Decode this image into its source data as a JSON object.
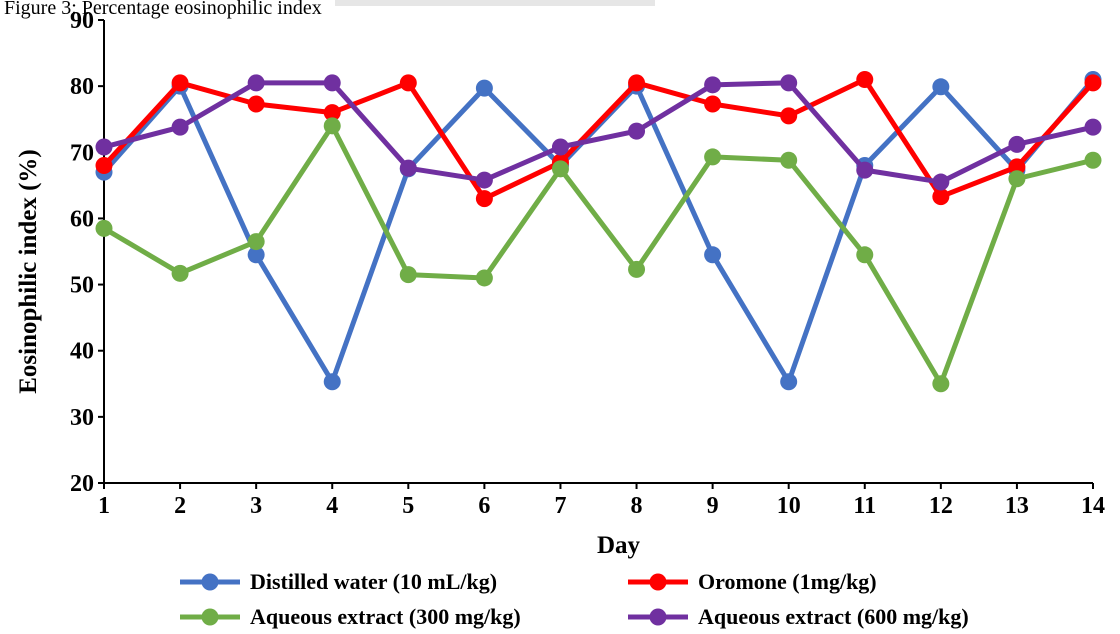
{
  "page": {
    "caption": "Figure 3: Percentage eosinophilic index"
  },
  "chart_data": {
    "type": "line",
    "title": "",
    "xlabel": "Day",
    "ylabel": "Eosinophilic index (%)",
    "x": [
      1,
      2,
      3,
      4,
      5,
      6,
      7,
      8,
      9,
      10,
      11,
      12,
      13,
      14
    ],
    "xlim": [
      1,
      14
    ],
    "ylim": [
      20,
      90
    ],
    "yticks": [
      20,
      30,
      40,
      50,
      60,
      70,
      80,
      90
    ],
    "grid": false,
    "legend_position": "bottom",
    "series": [
      {
        "name": "Distilled water (10 mL/kg)",
        "color": "#4472C4",
        "values": [
          67,
          80,
          54.5,
          35.3,
          67.5,
          79.7,
          68,
          80,
          54.5,
          35.3,
          68,
          79.9,
          67.3,
          81
        ]
      },
      {
        "name": "Oromone (1mg/kg)",
        "color": "#FF0000",
        "values": [
          68,
          80.5,
          77.3,
          76,
          80.5,
          63,
          68.5,
          80.5,
          77.3,
          75.5,
          81,
          63.3,
          67.8,
          80.5
        ]
      },
      {
        "name": "Aqueous extract (300 mg/kg)",
        "color": "#70AD47",
        "values": [
          58.5,
          51.7,
          56.5,
          74,
          51.5,
          51,
          67.5,
          52.3,
          69.3,
          68.8,
          54.5,
          35,
          66,
          68.8
        ]
      },
      {
        "name": "Aqueous extract (600 mg/kg)",
        "color": "#7030A0",
        "values": [
          70.8,
          73.8,
          80.5,
          80.5,
          67.6,
          65.8,
          70.8,
          73.2,
          80.2,
          80.5,
          67.3,
          65.5,
          71.2,
          73.8
        ]
      }
    ]
  }
}
